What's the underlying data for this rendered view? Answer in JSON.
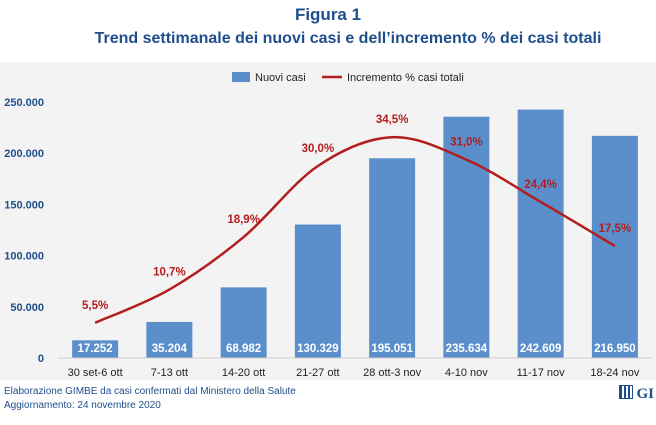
{
  "figure": {
    "label": "Figura 1",
    "title": "Trend settimanale dei nuovi casi e dell’incremento % dei casi totali"
  },
  "footer": {
    "source": "Elaborazione GIMBE da casi confermati dal Ministero della Salute",
    "update": "Aggiornamento: 24 novembre 2020",
    "logo_text": "GI"
  },
  "colors": {
    "bar": "#5b8fcb",
    "line": "#b21d1d",
    "title": "#1f4e8c"
  },
  "chart_data": {
    "type": "bar",
    "categories": [
      "30 set-6 ott",
      "7-13 ott",
      "14-20 ott",
      "21-27 ott",
      "28 ott-3 nov",
      "4-10 nov",
      "11-17 nov",
      "18-24 nov"
    ],
    "ylim": [
      0,
      250000
    ],
    "y_ticks": [
      "0",
      "50.000",
      "100.000",
      "150.000",
      "200.000",
      "250.000"
    ],
    "y_tick_values": [
      0,
      50000,
      100000,
      150000,
      200000,
      250000
    ],
    "grid": false,
    "legend_position": "top-center",
    "series": [
      {
        "name": "Nuovi casi",
        "type": "bar",
        "values": [
          17252,
          35204,
          68982,
          130329,
          195051,
          235634,
          242609,
          216950
        ],
        "labels": [
          "17.252",
          "35.204",
          "68.982",
          "130.329",
          "195.051",
          "235.634",
          "242.609",
          "216.950"
        ]
      },
      {
        "name": "Incremento % casi totali",
        "type": "line",
        "values": [
          5.5,
          10.7,
          18.9,
          30.0,
          34.5,
          31.0,
          24.4,
          17.5
        ],
        "labels": [
          "5,5%",
          "10,7%",
          "18,9%",
          "30,0%",
          "34,5%",
          "31,0%",
          "24,4%",
          "17,5%"
        ],
        "ylim": [
          0,
          40
        ]
      }
    ]
  }
}
